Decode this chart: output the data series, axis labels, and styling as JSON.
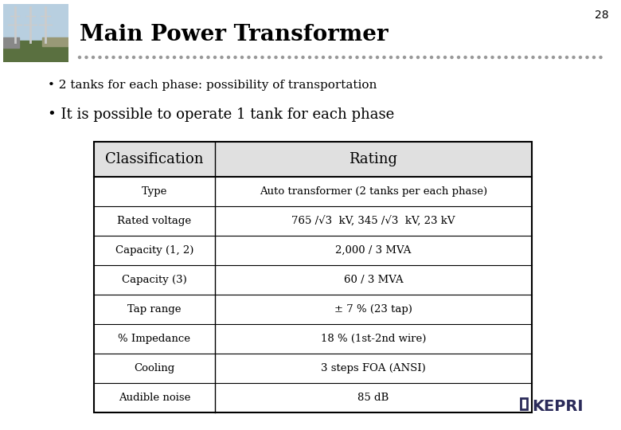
{
  "slide_number": "28",
  "title": "Main Power Transformer",
  "bullet1": "• 2 tanks for each phase: possibility of transportation",
  "bullet2": "• It is possible to operate 1 tank for each phase",
  "table_header": [
    "Classification",
    "Rating"
  ],
  "table_rows": [
    [
      "Type",
      "Auto transformer (2 tanks per each phase)"
    ],
    [
      "Rated voltage",
      "765 /√3  kV, 345 /√3  kV, 23 kV"
    ],
    [
      "Capacity (1, 2)",
      "2,000 / 3 MVA"
    ],
    [
      "Capacity (3)",
      "60 / 3 MVA"
    ],
    [
      "Tap range",
      "± 7 % (23 tap)"
    ],
    [
      "% Impedance",
      "18 % (1st-2nd wire)"
    ],
    [
      "Cooling",
      "3 steps FOA (ANSI)"
    ],
    [
      "Audible noise",
      "85 dB"
    ]
  ],
  "bg_color": "#ffffff",
  "title_color": "#000000",
  "header_fill": "#e0e0e0",
  "table_border_color": "#000000",
  "dotted_line_color": "#999999",
  "slide_num_color": "#000000",
  "kepri_color": "#2b2b5a",
  "img_sky": "#b8cfe0",
  "img_ground": "#6a8c5a",
  "img_structure": "#bbbbbb"
}
